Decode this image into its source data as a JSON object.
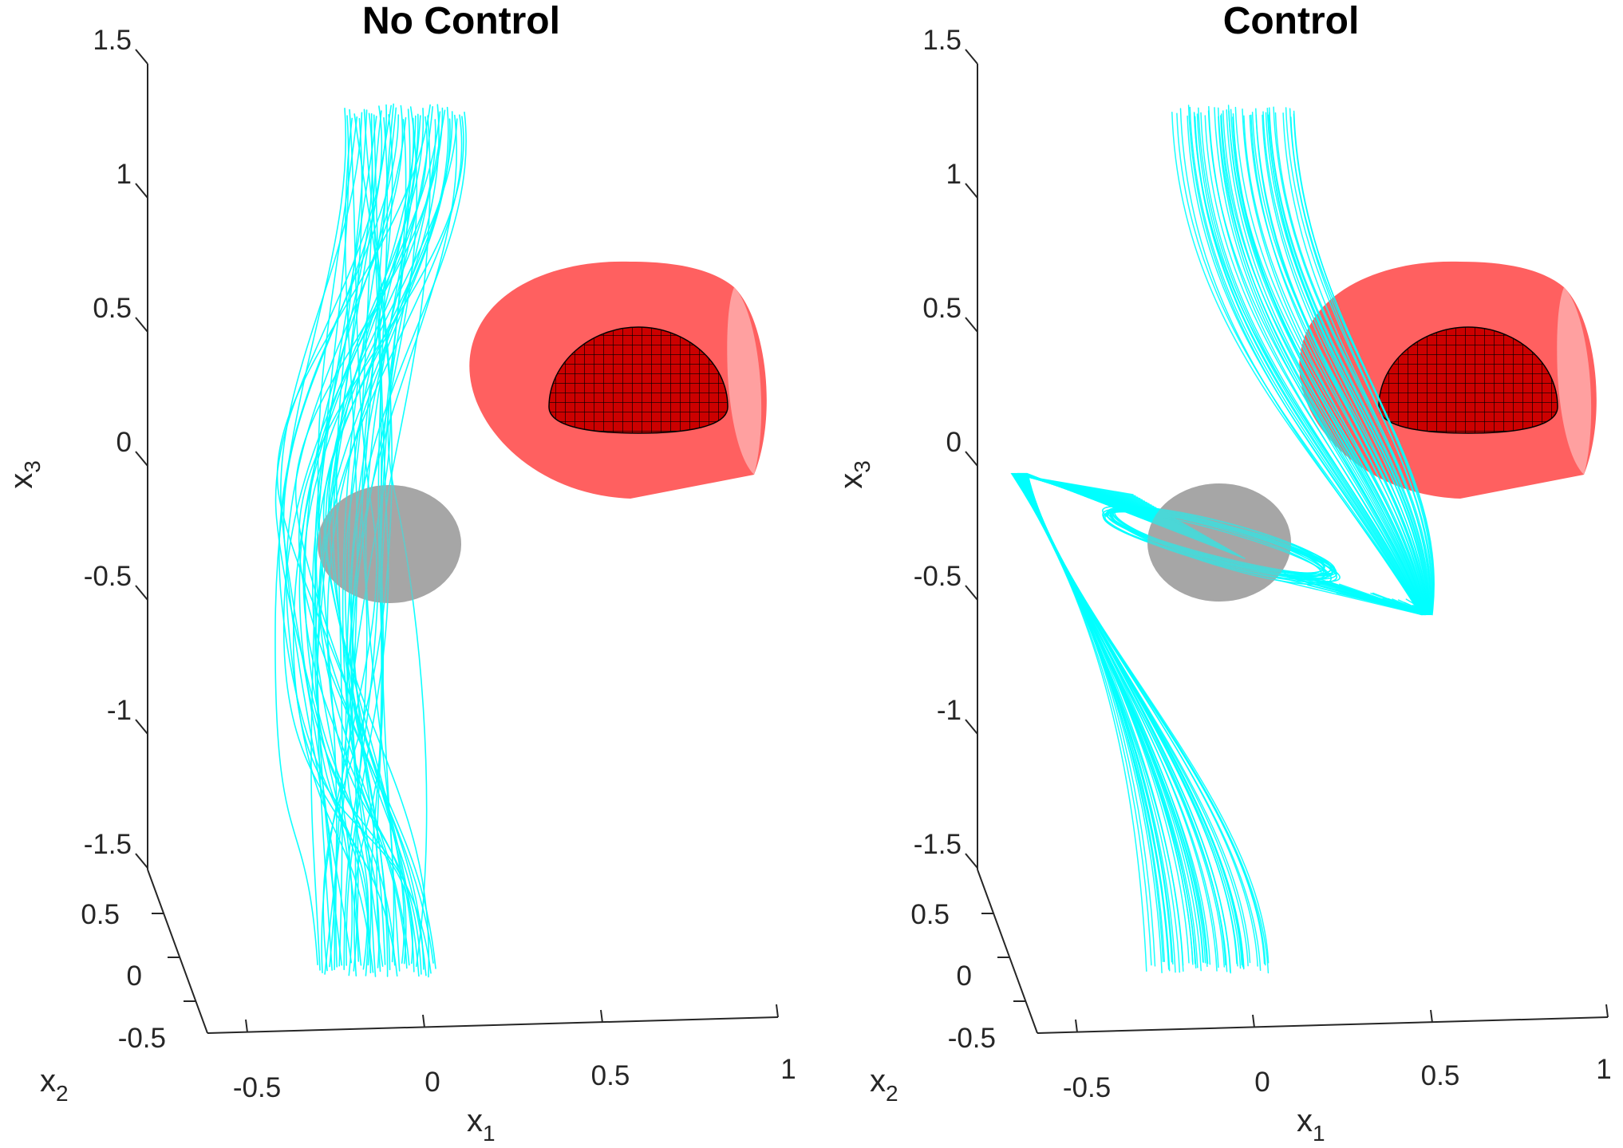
{
  "colors": {
    "trajectory": "#00FFFF",
    "obstacle": "#A6A6A6",
    "unsafe_outer": "#FF6060",
    "unsafe_inner": "#CC0000",
    "axis": "#262626"
  },
  "icons": [
    "cyan-trajectory-lines",
    "gray-sphere",
    "red-translucent-shell",
    "red-mesh-hemisphere"
  ],
  "chart_data": [
    {
      "type": "line3d",
      "title": "No Control",
      "xlabel": "x",
      "xlabel_sub": "1",
      "ylabel": "x",
      "ylabel_sub": "2",
      "zlabel": "x",
      "zlabel_sub": "3",
      "x_ticks": [
        "-0.5",
        "0",
        "0.5",
        "1"
      ],
      "y_ticks": [
        "-0.5",
        "0",
        "0.5"
      ],
      "z_ticks": [
        "-1.5",
        "-1",
        "-0.5",
        "0",
        "0.5",
        "1",
        "1.5"
      ],
      "xlim": [
        -0.6,
        1.0
      ],
      "ylim": [
        -0.6,
        0.7
      ],
      "zlim": [
        -1.6,
        1.5
      ],
      "grid": false,
      "trajectory_count": 50,
      "obstacle": {
        "shape": "sphere",
        "center": [
          -0.2,
          0.0,
          -0.35
        ],
        "radius": 0.2
      },
      "unsafe_region": {
        "shape": "sphere",
        "center": [
          0.45,
          0.0,
          0.2
        ],
        "inner_radius": 0.25,
        "outer_radius": 0.45
      }
    },
    {
      "type": "line3d",
      "title": "Control",
      "xlabel": "x",
      "xlabel_sub": "1",
      "ylabel": "x",
      "ylabel_sub": "2",
      "zlabel": "x",
      "zlabel_sub": "3",
      "x_ticks": [
        "-0.5",
        "0",
        "0.5",
        "1"
      ],
      "y_ticks": [
        "-0.5",
        "0",
        "0.5"
      ],
      "z_ticks": [
        "-1.5",
        "-1",
        "-0.5",
        "0",
        "0.5",
        "1",
        "1.5"
      ],
      "xlim": [
        -0.6,
        1.0
      ],
      "ylim": [
        -0.6,
        0.7
      ],
      "zlim": [
        -1.6,
        1.5
      ],
      "grid": false,
      "trajectory_count": 50,
      "obstacle": {
        "shape": "sphere",
        "center": [
          -0.2,
          0.0,
          -0.35
        ],
        "radius": 0.2
      },
      "unsafe_region": {
        "shape": "sphere",
        "center": [
          0.45,
          0.0,
          0.2
        ],
        "inner_radius": 0.25,
        "outer_radius": 0.45
      }
    }
  ]
}
